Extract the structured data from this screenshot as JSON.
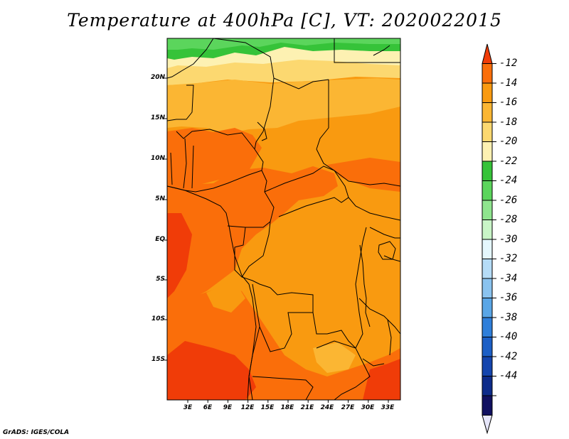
{
  "title": "Temperature at 400hPa [C], VT: 2020022015",
  "credit": "GrADS: IGES/COLA",
  "map": {
    "variable": "Temperature",
    "level": "400hPa",
    "units": "C",
    "valid_time": "2020022015",
    "lon_range_deg": [
      -0.2,
      35.3
    ],
    "lat_range_deg": [
      -20.0,
      24.9
    ],
    "y_tick_labels": [
      "20N",
      "15N",
      "10N",
      "5N",
      "EQ",
      "5S",
      "10S",
      "15S"
    ],
    "x_tick_labels": [
      "3E",
      "6E",
      "9E",
      "12E",
      "15E",
      "18E",
      "21E",
      "24E",
      "27E",
      "30E",
      "33E"
    ]
  },
  "colorbar": {
    "labels": [
      "-12",
      "-14",
      "-16",
      "-18",
      "-20",
      "-22",
      "-24",
      "-26",
      "-28",
      "-30",
      "-32",
      "-34",
      "-36",
      "-38",
      "-40",
      "-42",
      "-44"
    ],
    "colors": [
      "#f03c08",
      "#fa6e0a",
      "#f99a10",
      "#fbb633",
      "#fcd870",
      "#fdf1b2",
      "#36c339",
      "#5bd55c",
      "#8fe58e",
      "#c9f5c7",
      "#e5f7fd",
      "#b5dcf7",
      "#8ac3ef",
      "#5aa6e6",
      "#2f7fda",
      "#1c5fc6",
      "#1445ae",
      "#0d2b8a",
      "#101060",
      "#e6e6fa"
    ]
  }
}
